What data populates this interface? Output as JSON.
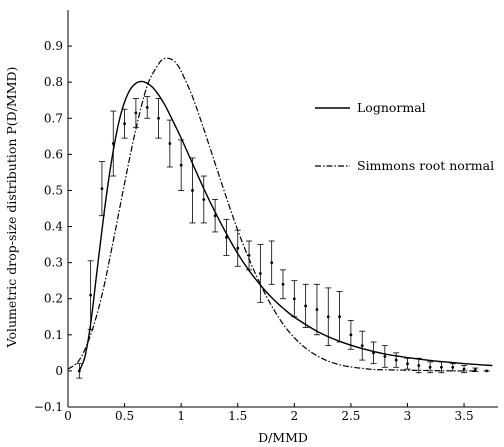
{
  "chart_data": {
    "type": "line",
    "xlabel": "D/MMD",
    "ylabel": "Volumetric drop-size distribution P(D/MMD)",
    "xlim": [
      0,
      3.8
    ],
    "ylim": [
      -0.1,
      1.0
    ],
    "xticks": [
      "0",
      "0.5",
      "1",
      "1.5",
      "2",
      "2.5",
      "3",
      "3.5"
    ],
    "yticks": [
      "−0.1",
      "0",
      "0.1",
      "0.2",
      "0.3",
      "0.4",
      "0.5",
      "0.6",
      "0.7",
      "0.8",
      "0.9"
    ],
    "grid": false,
    "legend_position": "right",
    "series": [
      {
        "name": "Lognormal",
        "style": "solid",
        "x": [
          0.1,
          0.15,
          0.2,
          0.25,
          0.3,
          0.35,
          0.4,
          0.45,
          0.5,
          0.55,
          0.6,
          0.65,
          0.7,
          0.75,
          0.8,
          0.85,
          0.9,
          1.0,
          1.1,
          1.2,
          1.3,
          1.4,
          1.5,
          1.6,
          1.7,
          1.8,
          1.9,
          2.0,
          2.2,
          2.4,
          2.6,
          2.8,
          3.0,
          3.2,
          3.4,
          3.6,
          3.75
        ],
        "y": [
          0.0,
          0.04,
          0.13,
          0.26,
          0.39,
          0.51,
          0.61,
          0.69,
          0.745,
          0.78,
          0.797,
          0.802,
          0.797,
          0.785,
          0.765,
          0.74,
          0.71,
          0.645,
          0.575,
          0.505,
          0.44,
          0.38,
          0.325,
          0.278,
          0.238,
          0.203,
          0.174,
          0.149,
          0.11,
          0.082,
          0.062,
          0.047,
          0.037,
          0.029,
          0.023,
          0.018,
          0.015
        ]
      },
      {
        "name": "Simmons root normal",
        "style": "dashdot",
        "x": [
          0.0,
          0.1,
          0.2,
          0.3,
          0.4,
          0.5,
          0.6,
          0.7,
          0.8,
          0.85,
          0.9,
          0.95,
          1.0,
          1.1,
          1.2,
          1.3,
          1.4,
          1.5,
          1.6,
          1.7,
          1.8,
          1.9,
          2.0,
          2.1,
          2.2,
          2.3,
          2.4,
          2.5,
          2.6,
          2.7,
          2.8,
          3.0,
          3.2,
          3.4,
          3.6
        ],
        "y": [
          0.005,
          0.03,
          0.1,
          0.21,
          0.36,
          0.52,
          0.67,
          0.79,
          0.85,
          0.865,
          0.865,
          0.855,
          0.83,
          0.76,
          0.67,
          0.575,
          0.48,
          0.39,
          0.31,
          0.24,
          0.18,
          0.13,
          0.092,
          0.063,
          0.042,
          0.027,
          0.017,
          0.011,
          0.007,
          0.004,
          0.003,
          0.002,
          0.001,
          0.0,
          0.0
        ]
      }
    ],
    "measurements": {
      "x": [
        0.1,
        0.2,
        0.3,
        0.4,
        0.5,
        0.6,
        0.7,
        0.8,
        0.9,
        1.0,
        1.1,
        1.2,
        1.3,
        1.4,
        1.5,
        1.6,
        1.7,
        1.8,
        1.9,
        2.0,
        2.1,
        2.2,
        2.3,
        2.4,
        2.5,
        2.6,
        2.7,
        2.8,
        2.9,
        3.0,
        3.1,
        3.2,
        3.3,
        3.4,
        3.5,
        3.6,
        3.7
      ],
      "y": [
        0.0,
        0.21,
        0.505,
        0.63,
        0.685,
        0.715,
        0.73,
        0.7,
        0.63,
        0.57,
        0.5,
        0.475,
        0.43,
        0.37,
        0.34,
        0.32,
        0.27,
        0.3,
        0.24,
        0.2,
        0.18,
        0.17,
        0.15,
        0.15,
        0.1,
        0.07,
        0.05,
        0.04,
        0.03,
        0.02,
        0.015,
        0.01,
        0.01,
        0.01,
        0.005,
        0.003,
        0.0
      ],
      "err": [
        0.02,
        0.095,
        0.075,
        0.09,
        0.04,
        0.04,
        0.03,
        0.055,
        0.065,
        0.07,
        0.09,
        0.065,
        0.045,
        0.05,
        0.05,
        0.04,
        0.08,
        0.06,
        0.04,
        0.05,
        0.06,
        0.07,
        0.08,
        0.07,
        0.04,
        0.04,
        0.03,
        0.03,
        0.02,
        0.015,
        0.02,
        0.015,
        0.015,
        0.01,
        0.01,
        0.005,
        0.0
      ]
    }
  }
}
